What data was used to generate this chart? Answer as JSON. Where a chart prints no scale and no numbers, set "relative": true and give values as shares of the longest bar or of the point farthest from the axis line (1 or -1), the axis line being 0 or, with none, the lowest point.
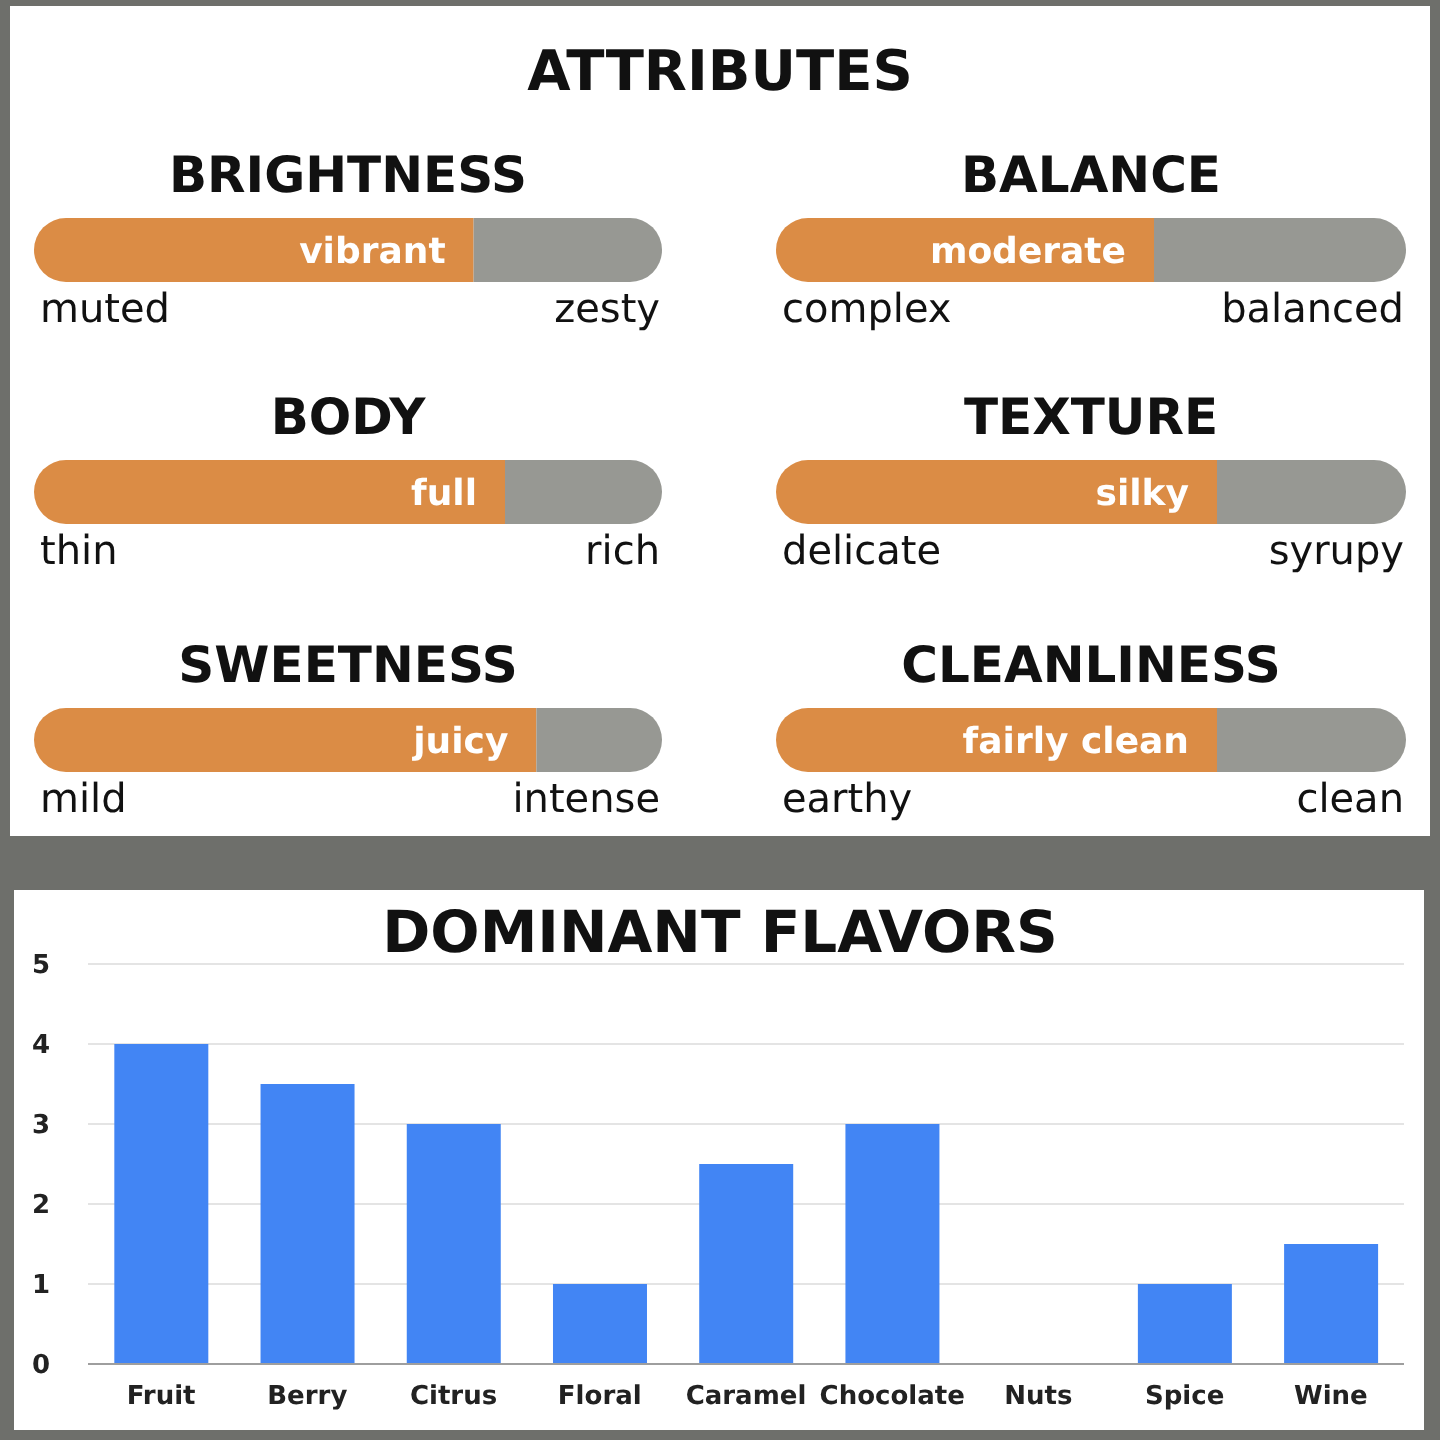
{
  "chart_data": [
    {
      "type": "other",
      "title": "ATTRIBUTES"
    },
    {
      "type": "bar",
      "orientation": "horizontal",
      "stacked": true,
      "relative": true,
      "title": "BRIGHTNESS",
      "categories": [
        null
      ],
      "series": [
        {
          "color": "#db8c45",
          "values": [
            0.7
          ]
        },
        {
          "color": "#979893",
          "values": [
            0.3
          ]
        }
      ],
      "annotations": [
        {
          "text": "vibrant",
          "x": 0.7
        },
        "muted",
        "zesty"
      ]
    },
    {
      "type": "bar",
      "orientation": "horizontal",
      "stacked": true,
      "relative": true,
      "title": "BALANCE",
      "categories": [
        null
      ],
      "series": [
        {
          "color": "#db8c45",
          "values": [
            0.6
          ]
        },
        {
          "color": "#979893",
          "values": [
            0.4
          ]
        }
      ],
      "annotations": [
        {
          "text": "moderate",
          "x": 0.6
        },
        "complex",
        "balanced"
      ]
    },
    {
      "type": "bar",
      "orientation": "horizontal",
      "stacked": true,
      "relative": true,
      "title": "BODY",
      "categories": [
        null
      ],
      "series": [
        {
          "color": "#db8c45",
          "values": [
            0.75
          ]
        },
        {
          "color": "#979893",
          "values": [
            0.25
          ]
        }
      ],
      "annotations": [
        {
          "text": "full",
          "x": 0.75
        },
        "thin",
        "rich"
      ]
    },
    {
      "type": "bar",
      "orientation": "horizontal",
      "stacked": true,
      "relative": true,
      "title": "TEXTURE",
      "categories": [
        null
      ],
      "series": [
        {
          "color": "#db8c45",
          "values": [
            0.7
          ]
        },
        {
          "color": "#979893",
          "values": [
            0.3
          ]
        }
      ],
      "annotations": [
        {
          "text": "silky",
          "x": 0.7
        },
        "delicate",
        "syrupy"
      ]
    },
    {
      "type": "bar",
      "orientation": "horizontal",
      "stacked": true,
      "relative": true,
      "title": "SWEETNESS",
      "categories": [
        null
      ],
      "series": [
        {
          "color": "#db8c45",
          "values": [
            0.8
          ]
        },
        {
          "color": "#979893",
          "values": [
            0.2
          ]
        }
      ],
      "annotations": [
        {
          "text": "juicy",
          "x": 0.8
        },
        "mild",
        "intense"
      ]
    },
    {
      "type": "bar",
      "orientation": "horizontal",
      "stacked": true,
      "relative": true,
      "title": "CLEANLINESS",
      "categories": [
        null
      ],
      "series": [
        {
          "color": "#db8c45",
          "values": [
            0.7
          ]
        },
        {
          "color": "#979893",
          "values": [
            0.3
          ]
        }
      ],
      "annotations": [
        {
          "text": "fairly clean",
          "x": 0.7
        },
        "earthy",
        "clean"
      ]
    },
    {
      "type": "bar",
      "title": "DOMINANT FLAVORS",
      "categories": [
        "Fruit",
        "Berry",
        "Citrus",
        "Floral",
        "Caramel",
        "Chocolate",
        "Nuts",
        "Spice",
        "Wine"
      ],
      "values": [
        4,
        3.5,
        3,
        1,
        2.5,
        3,
        0,
        1,
        1.5
      ],
      "color": "#4285f4",
      "ylim": [
        0,
        5
      ],
      "yticks": [
        0,
        1,
        2,
        3,
        4,
        5
      ],
      "grid": "y"
    }
  ]
}
